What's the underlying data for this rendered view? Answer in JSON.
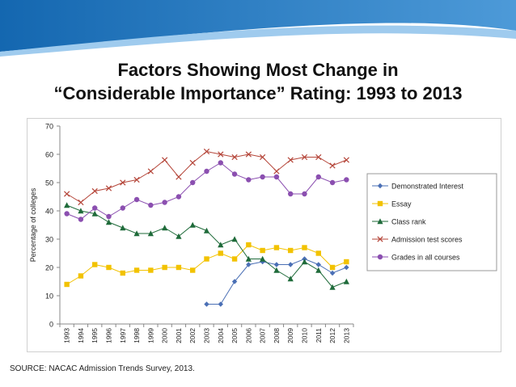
{
  "title": {
    "line1": "Factors Showing Most Change in",
    "line2": "“Considerable Importance” Rating: 1993 to 2013"
  },
  "source": "SOURCE: NACAC Admission Trends Survey, 2013.",
  "colors": {
    "banner_dark": "#1a6fb5",
    "banner_light": "#8fc3ea"
  },
  "chart_data": {
    "type": "line",
    "title": "",
    "xlabel": "",
    "ylabel": "Percentage of colleges",
    "ylim": [
      0,
      70
    ],
    "yticks": [
      0,
      10,
      20,
      30,
      40,
      50,
      60,
      70
    ],
    "legend_position": "right",
    "categories": [
      "1993",
      "1994",
      "1995",
      "1996",
      "1997",
      "1998",
      "1999",
      "2000",
      "2001",
      "2002",
      "2003",
      "2004",
      "2005",
      "2006",
      "2007",
      "2008",
      "2009",
      "2010",
      "2011",
      "2012",
      "2013"
    ],
    "series": [
      {
        "name": "Demonstrated Interest",
        "color": "#4a6fb5",
        "marker": "diamond",
        "values": [
          null,
          null,
          null,
          null,
          null,
          null,
          null,
          null,
          null,
          null,
          7,
          7,
          15,
          21,
          22,
          21,
          21,
          23,
          21,
          18,
          20
        ]
      },
      {
        "name": "Essay",
        "color": "#f2c200",
        "marker": "square",
        "values": [
          14,
          17,
          21,
          20,
          18,
          19,
          19,
          20,
          20,
          19,
          23,
          25,
          23,
          28,
          26,
          27,
          26,
          27,
          25,
          20,
          22
        ]
      },
      {
        "name": "Class rank",
        "color": "#1f6b3a",
        "marker": "triangle",
        "values": [
          42,
          40,
          39,
          36,
          34,
          32,
          32,
          34,
          31,
          35,
          33,
          28,
          30,
          23,
          23,
          19,
          16,
          22,
          19,
          13,
          15
        ]
      },
      {
        "name": "Admission test scores",
        "color": "#b5463a",
        "marker": "x",
        "values": [
          46,
          43,
          47,
          48,
          50,
          51,
          54,
          58,
          52,
          57,
          61,
          60,
          59,
          60,
          59,
          54,
          58,
          59,
          59,
          56,
          58
        ]
      },
      {
        "name": "Grades in all courses",
        "color": "#8b4fb0",
        "marker": "circle",
        "values": [
          39,
          37,
          41,
          38,
          41,
          44,
          42,
          43,
          45,
          50,
          54,
          57,
          53,
          51,
          52,
          52,
          46,
          46,
          52,
          50,
          51
        ]
      }
    ]
  }
}
